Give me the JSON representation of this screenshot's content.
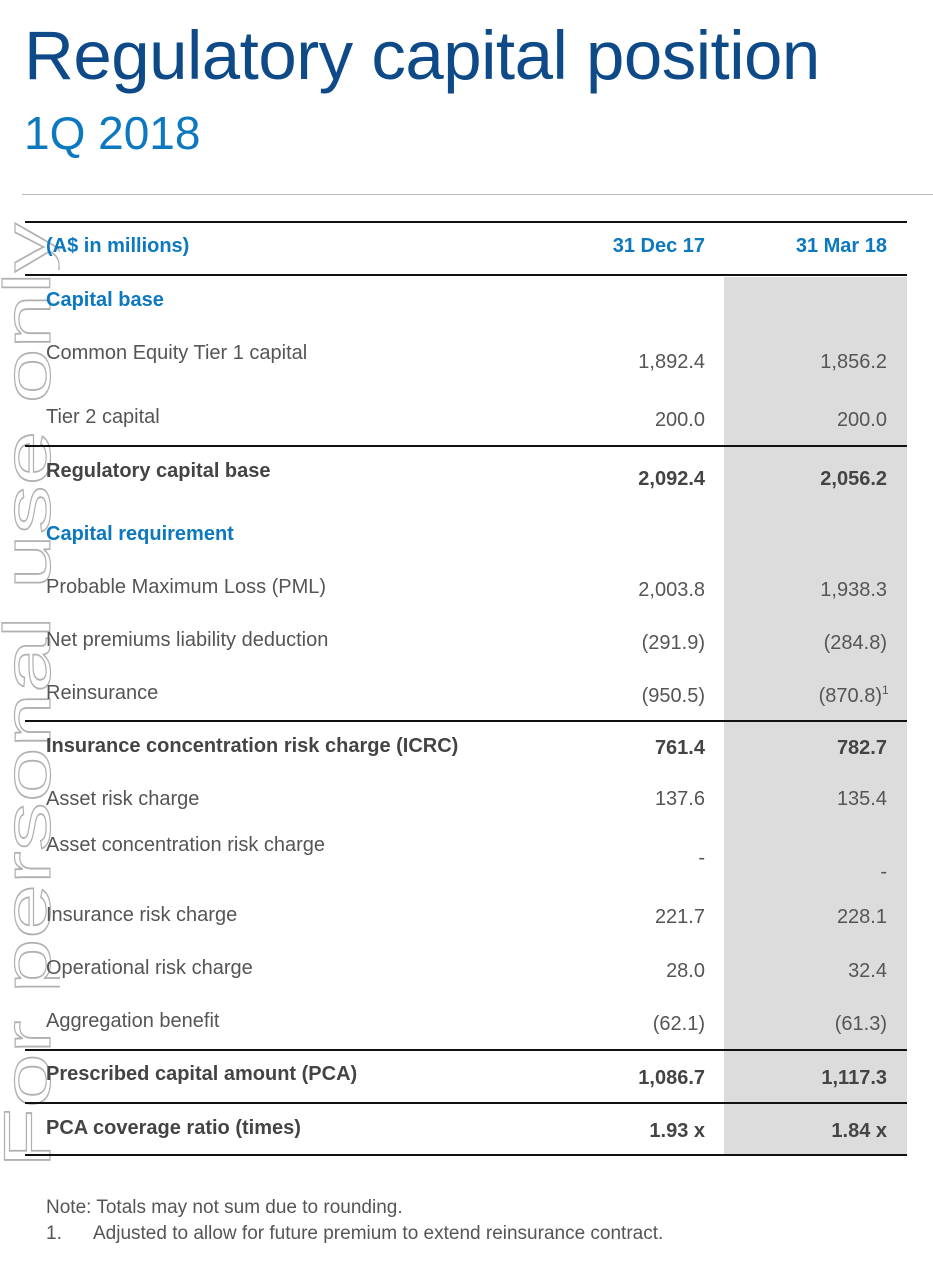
{
  "header": {
    "title": "Regulatory capital position",
    "subtitle": "1Q 2018"
  },
  "watermark": "For personal use only",
  "table": {
    "columns": [
      "(A$ in millions)",
      "31 Dec 17",
      "31 Mar 18"
    ],
    "rows": [
      [
        "Capital base"
      ],
      [
        "Common Equity Tier 1 capital",
        "1,892.4",
        "1,856.2"
      ],
      [
        "Tier 2 capital",
        "200.0",
        "200.0"
      ],
      [
        "Regulatory capital base",
        "2,092.4",
        "2,056.2"
      ],
      [
        "Capital requirement"
      ],
      [
        "Probable Maximum Loss (PML)",
        "2,003.8",
        "1,938.3"
      ],
      [
        "Net premiums liability deduction",
        "(291.9)",
        "(284.8)"
      ],
      [
        "Reinsurance",
        "(950.5)",
        "(870.8)",
        "1"
      ],
      [
        "Insurance concentration risk charge (ICRC)",
        "761.4",
        "782.7"
      ],
      [
        "Asset risk charge",
        "137.6",
        "135.4"
      ],
      [
        "Asset concentration risk charge",
        "-",
        "-"
      ],
      [
        "Insurance risk charge",
        "221.7",
        "228.1"
      ],
      [
        "Operational risk charge",
        "28.0",
        "32.4"
      ],
      [
        "Aggregation benefit",
        "(62.1)",
        "(61.3)"
      ],
      [
        "Prescribed capital amount (PCA)",
        "1,086.7",
        "1,117.3"
      ],
      [
        "PCA coverage ratio (times)",
        "1.93 x",
        "1.84 x"
      ]
    ]
  },
  "notes": {
    "note": "Note: Totals may not sum due to rounding.",
    "footnote": {
      "number": "1.",
      "text": "Adjusted to allow for future premium to extend reinsurance contract."
    }
  }
}
